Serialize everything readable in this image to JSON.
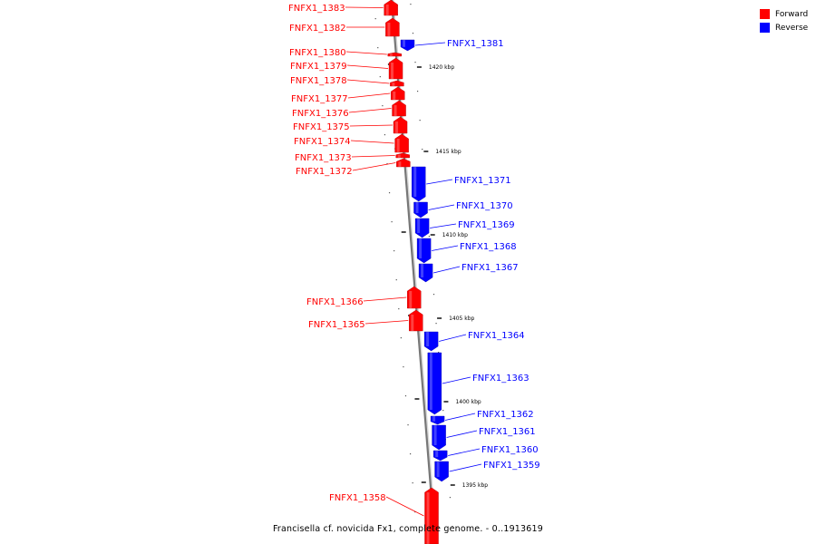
{
  "legend": {
    "forward_label": "Forward",
    "reverse_label": "Reverse",
    "forward_color": "#ff0000",
    "reverse_color": "#0000ff"
  },
  "caption": "Francisella cf. novicida Fx1, complete genome. - 0..1913619",
  "ticks": [
    "1420 kbp",
    "1415 kbp",
    "1410 kbp",
    "1405 kbp",
    "1400 kbp",
    "1395 kbp"
  ],
  "genes": [
    {
      "name": "FNFX1_1383",
      "strand": "forward"
    },
    {
      "name": "FNFX1_1382",
      "strand": "forward"
    },
    {
      "name": "FNFX1_1381",
      "strand": "reverse"
    },
    {
      "name": "FNFX1_1380",
      "strand": "forward"
    },
    {
      "name": "FNFX1_1379",
      "strand": "forward"
    },
    {
      "name": "FNFX1_1378",
      "strand": "forward"
    },
    {
      "name": "FNFX1_1377",
      "strand": "forward"
    },
    {
      "name": "FNFX1_1376",
      "strand": "forward"
    },
    {
      "name": "FNFX1_1375",
      "strand": "forward"
    },
    {
      "name": "FNFX1_1374",
      "strand": "forward"
    },
    {
      "name": "FNFX1_1373",
      "strand": "forward"
    },
    {
      "name": "FNFX1_1372",
      "strand": "forward"
    },
    {
      "name": "FNFX1_1371",
      "strand": "reverse"
    },
    {
      "name": "FNFX1_1370",
      "strand": "reverse"
    },
    {
      "name": "FNFX1_1369",
      "strand": "reverse"
    },
    {
      "name": "FNFX1_1368",
      "strand": "reverse"
    },
    {
      "name": "FNFX1_1367",
      "strand": "reverse"
    },
    {
      "name": "FNFX1_1366",
      "strand": "forward"
    },
    {
      "name": "FNFX1_1365",
      "strand": "forward"
    },
    {
      "name": "FNFX1_1364",
      "strand": "reverse"
    },
    {
      "name": "FNFX1_1363",
      "strand": "reverse"
    },
    {
      "name": "FNFX1_1362",
      "strand": "reverse"
    },
    {
      "name": "FNFX1_1361",
      "strand": "reverse"
    },
    {
      "name": "FNFX1_1360",
      "strand": "reverse"
    },
    {
      "name": "FNFX1_1359",
      "strand": "reverse"
    },
    {
      "name": "FNFX1_1358",
      "strand": "forward"
    }
  ]
}
